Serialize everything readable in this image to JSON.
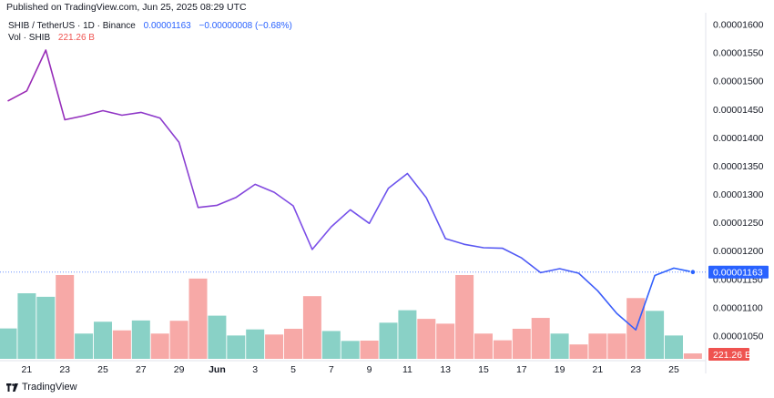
{
  "header": {
    "published": "Published on TradingView.com, Jun 25, 2025 08:29 UTC"
  },
  "legend": {
    "symbol": "SHIB / TetherUS · 1D · Binance",
    "price": "0.00001163",
    "change": "−0.00000008 (−0.68%)",
    "vol_label": "Vol · SHIB",
    "vol_value": "221.26 B"
  },
  "footer": {
    "brand": "TradingView"
  },
  "colors": {
    "line_top": "#9c27b0",
    "line_bottom": "#2962ff",
    "vol_up": "#89d1c6",
    "vol_down": "#f7a9a7",
    "price_tag": "#2962ff",
    "vol_tag": "#ef5350"
  },
  "chart_data": {
    "type": "line",
    "title": "SHIB / TetherUS · 1D · Binance",
    "x_ticks": [
      "21",
      "23",
      "25",
      "27",
      "29",
      "Jun",
      "3",
      "5",
      "7",
      "9",
      "11",
      "13",
      "15",
      "17",
      "19",
      "21",
      "23",
      "25"
    ],
    "y_ticks": [
      "0.00001600",
      "0.00001550",
      "0.00001500",
      "0.00001450",
      "0.00001400",
      "0.00001350",
      "0.00001300",
      "0.00001250",
      "0.00001200",
      "0.00001150",
      "0.00001100",
      "0.00001050"
    ],
    "ylim": [
      1.01e-05,
      1.625e-05
    ],
    "dates": [
      "May 20",
      "May 21",
      "May 22",
      "May 23",
      "May 24",
      "May 25",
      "May 26",
      "May 27",
      "May 28",
      "May 29",
      "May 30",
      "May 31",
      "Jun 1",
      "Jun 2",
      "Jun 3",
      "Jun 4",
      "Jun 5",
      "Jun 6",
      "Jun 7",
      "Jun 8",
      "Jun 9",
      "Jun 10",
      "Jun 11",
      "Jun 12",
      "Jun 13",
      "Jun 14",
      "Jun 15",
      "Jun 16",
      "Jun 17",
      "Jun 18",
      "Jun 19",
      "Jun 20",
      "Jun 21",
      "Jun 22",
      "Jun 23",
      "Jun 24",
      "Jun 25"
    ],
    "series": [
      {
        "values": [
          1.465e-05,
          1.483e-05,
          1.555e-05,
          1.432e-05,
          1.439e-05,
          1.448e-05,
          1.44e-05,
          1.445e-05,
          1.435e-05,
          1.392e-05,
          1.277e-05,
          1.281e-05,
          1.295e-05,
          1.318e-05,
          1.304e-05,
          1.28e-05,
          1.203e-05,
          1.243e-05,
          1.273e-05,
          1.249e-05,
          1.311e-05,
          1.337e-05,
          1.294e-05,
          1.222e-05,
          1.212e-05,
          1.206e-05,
          1.205e-05,
          1.188e-05,
          1.162e-05,
          1.169e-05,
          1.161e-05,
          1.13e-05,
          1.09e-05,
          1.061e-05,
          1.157e-05,
          1.17e-05,
          1.163e-05
        ]
      },
      {
        "name": "Vol · SHIB",
        "values": [
          95,
          205,
          194,
          262,
          79,
          116,
          89,
          120,
          79,
          119,
          251,
          135,
          73,
          92,
          76,
          94,
          196,
          87,
          56,
          57,
          113,
          152,
          125,
          110,
          262,
          79,
          58,
          94,
          128,
          79,
          45,
          79,
          79,
          190,
          150,
          73,
          17
        ],
        "direction": [
          "up",
          "up",
          "up",
          "down",
          "up",
          "up",
          "down",
          "up",
          "down",
          "down",
          "down",
          "up",
          "up",
          "up",
          "down",
          "down",
          "down",
          "up",
          "up",
          "down",
          "up",
          "up",
          "down",
          "down",
          "down",
          "down",
          "down",
          "down",
          "down",
          "up",
          "down",
          "down",
          "down",
          "down",
          "up",
          "up",
          "down"
        ]
      }
    ],
    "last_price_label": "0.00001163",
    "last_volume_label": "221.26 B"
  }
}
